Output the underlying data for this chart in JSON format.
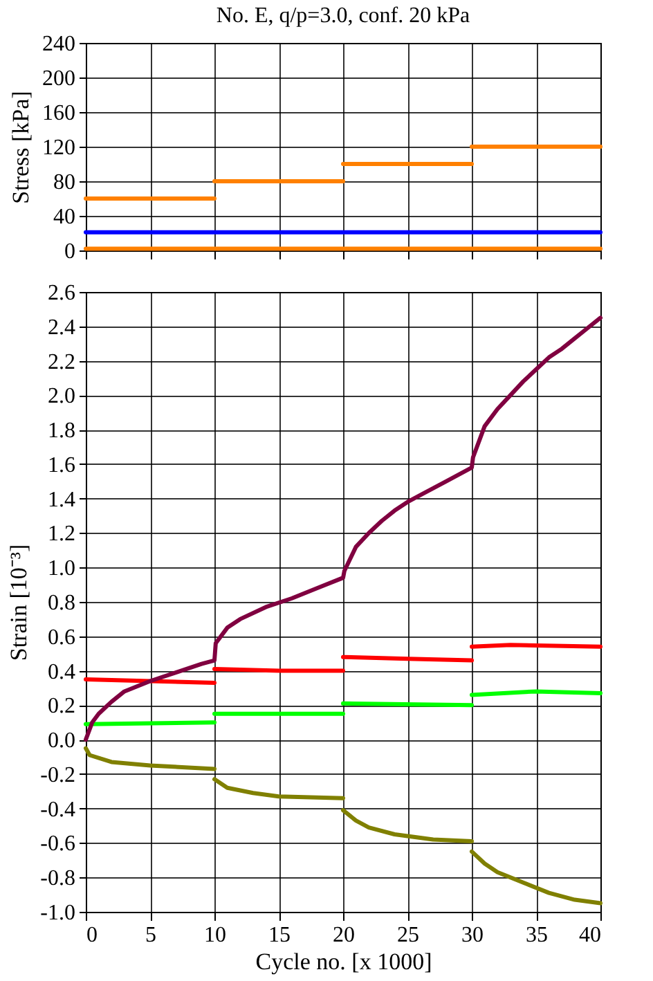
{
  "chart_data": [
    {
      "type": "line",
      "title": "No. E, q/p=3.0, conf. 20 kPa",
      "ylabel": "Stress [kPa]",
      "xlim": [
        0,
        40
      ],
      "xticks": [
        0,
        5,
        10,
        15,
        20,
        25,
        30,
        35,
        40
      ],
      "ylim": [
        0,
        240
      ],
      "yticks": [
        0,
        40,
        80,
        120,
        160,
        200,
        240
      ],
      "grid": true,
      "tick_labels": "y",
      "series": [
        {
          "color": "#ff8000",
          "x": [
            0,
            10
          ],
          "values": [
            60,
            60
          ]
        },
        {
          "color": "#ff8000",
          "x": [
            10,
            20
          ],
          "values": [
            80,
            80
          ]
        },
        {
          "color": "#ff8000",
          "x": [
            20,
            30
          ],
          "values": [
            100,
            100
          ]
        },
        {
          "color": "#ff8000",
          "x": [
            30,
            40
          ],
          "values": [
            120,
            120
          ]
        },
        {
          "color": "#ff8000",
          "x": [
            0,
            40
          ],
          "values": [
            2,
            2
          ]
        },
        {
          "color": "#0000ff",
          "x": [
            0,
            40
          ],
          "values": [
            21,
            21
          ]
        }
      ]
    },
    {
      "type": "line",
      "xlabel": "Cycle no. [x 1000]",
      "ylabel": "Strain [10⁻³]",
      "xlim": [
        0,
        40
      ],
      "xticks": [
        0,
        5,
        10,
        15,
        20,
        25,
        30,
        35,
        40
      ],
      "ylim": [
        -1.0,
        2.6
      ],
      "yticks": [
        {
          "value": -1.0,
          "label": "-1.0"
        },
        {
          "value": -0.8,
          "label": "-0.8"
        },
        {
          "value": -0.6,
          "label": "-0.6"
        },
        {
          "value": -0.4,
          "label": "-0.4"
        },
        {
          "value": -0.2,
          "label": "-0.2"
        },
        {
          "value": 0,
          "label": "0.0"
        },
        {
          "value": 0.2,
          "label": "0.2"
        },
        {
          "value": 0.4,
          "label": "0.4"
        },
        {
          "value": 0.6,
          "label": "0.6"
        },
        {
          "value": 0.8,
          "label": "0.8"
        },
        {
          "value": 1.0,
          "label": "1.0"
        },
        {
          "value": 1.2,
          "label": "1.2"
        },
        {
          "value": 1.4,
          "label": "1.4"
        },
        {
          "value": 1.6,
          "label": "1.6"
        },
        {
          "value": 1.8,
          "label": "1.8"
        },
        {
          "value": 2.0,
          "label": "2.0"
        },
        {
          "value": 2.2,
          "label": "2.2"
        },
        {
          "value": 2.4,
          "label": "2.4"
        },
        {
          "value": 2.6,
          "label": "2.6"
        }
      ],
      "grid": true,
      "series": [
        {
          "color": "#ff0000",
          "x": [
            0,
            5,
            10
          ],
          "values": [
            0.35,
            0.34,
            0.33
          ]
        },
        {
          "color": "#ff0000",
          "x": [
            10,
            15,
            20
          ],
          "values": [
            0.41,
            0.4,
            0.4
          ]
        },
        {
          "color": "#ff0000",
          "x": [
            20,
            25,
            30
          ],
          "values": [
            0.48,
            0.47,
            0.46
          ]
        },
        {
          "color": "#ff0000",
          "x": [
            30,
            33,
            40
          ],
          "values": [
            0.54,
            0.55,
            0.54
          ]
        },
        {
          "color": "#00ff00",
          "x": [
            0,
            10
          ],
          "values": [
            0.09,
            0.1
          ]
        },
        {
          "color": "#00ff00",
          "x": [
            10,
            20
          ],
          "values": [
            0.15,
            0.15
          ]
        },
        {
          "color": "#00ff00",
          "x": [
            20,
            30
          ],
          "values": [
            0.21,
            0.2
          ]
        },
        {
          "color": "#00ff00",
          "x": [
            30,
            35,
            40
          ],
          "values": [
            0.26,
            0.28,
            0.27
          ]
        },
        {
          "color": "#808000",
          "x": [
            0,
            0.3,
            2,
            5,
            10
          ],
          "values": [
            -0.05,
            -0.09,
            -0.13,
            -0.15,
            -0.17
          ]
        },
        {
          "color": "#808000",
          "x": [
            10,
            11,
            13,
            15,
            20
          ],
          "values": [
            -0.23,
            -0.28,
            -0.31,
            -0.33,
            -0.34
          ]
        },
        {
          "color": "#808000",
          "x": [
            20,
            21,
            22,
            24,
            27,
            30
          ],
          "values": [
            -0.41,
            -0.47,
            -0.51,
            -0.55,
            -0.58,
            -0.59
          ]
        },
        {
          "color": "#808000",
          "x": [
            30,
            31,
            32,
            34,
            36,
            38,
            40
          ],
          "values": [
            -0.65,
            -0.72,
            -0.77,
            -0.83,
            -0.89,
            -0.93,
            -0.95
          ]
        },
        {
          "color": "#800040",
          "x": [
            0,
            0.5,
            1,
            2,
            3,
            5,
            7,
            9,
            10,
            10.1,
            11,
            12,
            14,
            16,
            18,
            20,
            20.1,
            21,
            22,
            23,
            24,
            25,
            26,
            28,
            30,
            30.1,
            31,
            32,
            33,
            34,
            35,
            36,
            37,
            38,
            39,
            40
          ],
          "values": [
            0,
            0.1,
            0.15,
            0.22,
            0.28,
            0.34,
            0.39,
            0.44,
            0.46,
            0.56,
            0.65,
            0.7,
            0.77,
            0.82,
            0.88,
            0.94,
            0.98,
            1.12,
            1.2,
            1.27,
            1.33,
            1.38,
            1.42,
            1.5,
            1.58,
            1.64,
            1.82,
            1.92,
            2.0,
            2.08,
            2.15,
            2.22,
            2.27,
            2.33,
            2.39,
            2.45
          ]
        }
      ]
    }
  ]
}
